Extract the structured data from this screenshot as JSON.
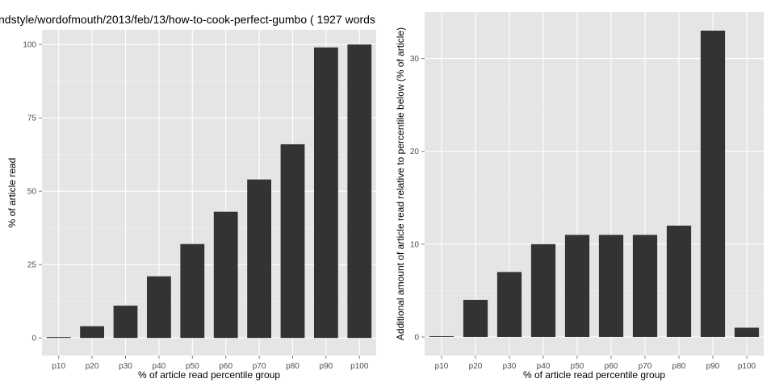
{
  "title": "ndstyle/wordofmouth/2013/feb/13/how-to-cook-perfect-gumbo ( 1927 words",
  "colors": {
    "panel_background": "#e5e5e5",
    "grid_major": "#ffffff",
    "grid_minor": "#f2f2f2",
    "bar_fill": "#333333",
    "tick_text": "#4d4d4d"
  },
  "chart_data": [
    {
      "type": "bar",
      "categories": [
        "p10",
        "p20",
        "p30",
        "p40",
        "p50",
        "p60",
        "p70",
        "p80",
        "p90",
        "p100"
      ],
      "values": [
        0,
        4,
        11,
        21,
        32,
        43,
        54,
        66,
        99,
        100
      ],
      "xlabel": "% of article read percentile group",
      "ylabel": "% of article read",
      "ylim": [
        -6,
        105
      ],
      "yticks": [
        "0",
        "25",
        "50",
        "75",
        "100"
      ],
      "grid": true
    },
    {
      "type": "bar",
      "categories": [
        "p10",
        "p20",
        "p30",
        "p40",
        "p50",
        "p60",
        "p70",
        "p80",
        "p90",
        "p100"
      ],
      "values": [
        0,
        4,
        7,
        10,
        11,
        11,
        11,
        12,
        33,
        1
      ],
      "xlabel": "% of article read percentile group",
      "ylabel": "Additional amount of article read relative to percentile below (% of article)",
      "ylim": [
        -2,
        35
      ],
      "yticks": [
        "0",
        "10",
        "20",
        "30"
      ],
      "grid": true
    }
  ]
}
